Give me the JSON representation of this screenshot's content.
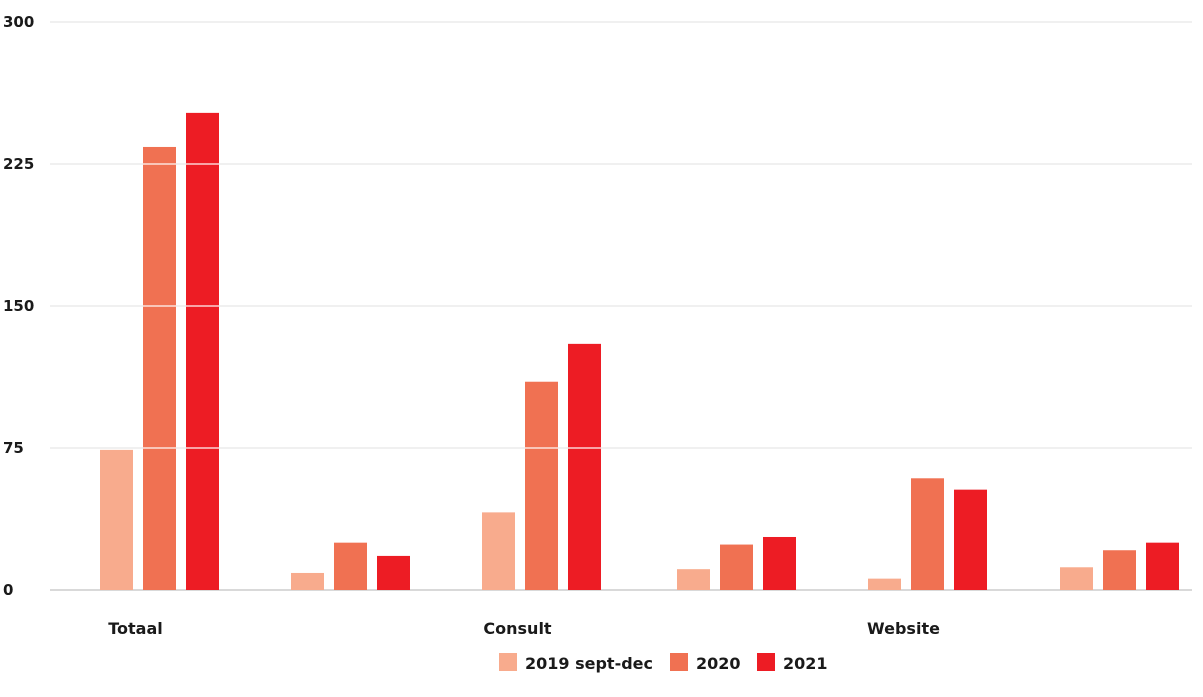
{
  "chart_data": {
    "type": "bar",
    "title": "",
    "xlabel": "",
    "ylabel": "",
    "ylim": [
      0,
      300
    ],
    "yticks": [
      0,
      75,
      150,
      225,
      300
    ],
    "grid": true,
    "legend_position": "bottom-center",
    "categories": [
      "Totaal",
      "",
      "Consult",
      "",
      "Website",
      ""
    ],
    "series": [
      {
        "name": "2019 sept-dec",
        "color": "#F8AB8D",
        "values": [
          74,
          9,
          41,
          11,
          6,
          12
        ]
      },
      {
        "name": "2020",
        "color": "#F07152",
        "values": [
          234,
          25,
          110,
          24,
          59,
          21
        ]
      },
      {
        "name": "2021",
        "color": "#ED1C24",
        "values": [
          252,
          18,
          130,
          28,
          53,
          25
        ]
      }
    ]
  }
}
